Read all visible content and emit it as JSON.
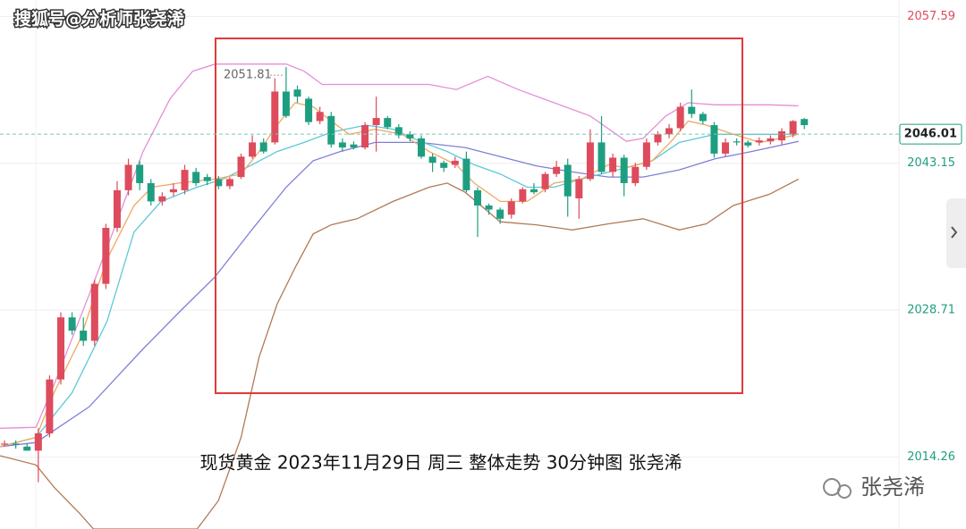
{
  "watermark": "搜狐号@分析师张尧浠",
  "logo": "张尧浠",
  "chart_data": {
    "type": "candlestick",
    "title": "现货黄金 2023年11月29日 周三 整体走势 30分钟图  张尧浠",
    "up_color": "#dd4b5c",
    "down_color": "#1e9e80",
    "open": [
      2015.6,
      2015.6,
      2015.3,
      2014.9,
      2016.6,
      2021.9,
      2028.0,
      2026.7,
      2025.7,
      2031.3,
      2036.8,
      2040.5,
      2043.0,
      2041.2,
      2039.4,
      2040.3,
      2040.5,
      2042.3,
      2041.8,
      2041.6,
      2040.9,
      2041.8,
      2043.8,
      2045.2,
      2045.2,
      2050.2,
      2050.4,
      2049.5,
      2047.3,
      2047.8,
      2045.2,
      2045.0,
      2044.7,
      2046.9,
      2047.6,
      2046.7,
      2046.0,
      2045.6,
      2043.8,
      2043.2,
      2043.0,
      2043.6,
      2040.5,
      2039.0,
      2038.6,
      2038.1,
      2039.4,
      2040.6,
      2040.6,
      2042.1,
      2043.0,
      2039.7,
      2041.6,
      2045.2,
      2042.3,
      2043.7,
      2041.2,
      2042.8,
      2045.2,
      2046.0,
      2046.6,
      2048.7,
      2048.0,
      2046.9,
      2044.1,
      2045.3,
      2045.2,
      2045.2,
      2045.3,
      2045.4,
      2046.0,
      2047.5
    ],
    "high": [
      2015.9,
      2015.9,
      2015.6,
      2017.1,
      2022.3,
      2028.5,
      2028.5,
      2028.0,
      2031.7,
      2037.2,
      2041.4,
      2043.6,
      2043.4,
      2041.6,
      2040.3,
      2041.2,
      2043.0,
      2042.7,
      2042.1,
      2041.9,
      2041.8,
      2044.1,
      2045.9,
      2045.6,
      2051.5,
      2052.6,
      2050.8,
      2049.7,
      2048.7,
      2048.2,
      2045.6,
      2045.3,
      2047.2,
      2049.7,
      2047.8,
      2047.0,
      2046.3,
      2045.9,
      2044.1,
      2043.4,
      2043.8,
      2044.3,
      2040.8,
      2039.2,
      2038.8,
      2039.7,
      2040.8,
      2041.2,
      2042.3,
      2043.4,
      2043.6,
      2041.9,
      2046.5,
      2047.8,
      2044.1,
      2044.0,
      2043.2,
      2045.6,
      2046.3,
      2047.0,
      2049.1,
      2050.4,
      2048.2,
      2047.2,
      2045.6,
      2045.6,
      2045.4,
      2045.7,
      2045.9,
      2046.6,
      2047.4,
      2047.6
    ],
    "low": [
      2015.3,
      2015.1,
      2014.9,
      2011.8,
      2016.2,
      2021.4,
      2026.3,
      2025.2,
      2025.2,
      2030.8,
      2036.4,
      2040.0,
      2040.5,
      2039.0,
      2039.0,
      2039.9,
      2040.1,
      2040.9,
      2041.0,
      2040.6,
      2040.6,
      2041.6,
      2043.6,
      2044.1,
      2045.0,
      2047.6,
      2049.1,
      2046.9,
      2047.0,
      2044.7,
      2044.3,
      2044.5,
      2044.5,
      2044.3,
      2046.5,
      2045.6,
      2045.3,
      2043.6,
      2042.3,
      2042.3,
      2042.7,
      2040.3,
      2035.9,
      2038.1,
      2037.2,
      2037.7,
      2039.2,
      2040.1,
      2040.3,
      2041.8,
      2037.9,
      2037.7,
      2041.4,
      2042.1,
      2041.8,
      2039.9,
      2040.9,
      2042.5,
      2044.9,
      2045.6,
      2046.3,
      2047.6,
      2047.0,
      2043.7,
      2043.8,
      2044.9,
      2044.7,
      2044.9,
      2045.0,
      2045.0,
      2045.7,
      2046.5
    ],
    "close": [
      2015.6,
      2015.5,
      2014.9,
      2016.6,
      2021.9,
      2028.0,
      2026.7,
      2025.7,
      2031.3,
      2036.8,
      2040.5,
      2043.0,
      2041.2,
      2039.4,
      2039.9,
      2040.6,
      2042.5,
      2041.2,
      2041.4,
      2040.9,
      2041.6,
      2043.8,
      2045.2,
      2044.3,
      2050.2,
      2047.8,
      2049.7,
      2047.2,
      2048.2,
      2045.0,
      2044.7,
      2044.7,
      2046.9,
      2047.6,
      2046.7,
      2045.9,
      2045.6,
      2043.8,
      2043.2,
      2042.7,
      2043.4,
      2040.5,
      2039.0,
      2038.6,
      2037.7,
      2039.4,
      2040.6,
      2040.3,
      2042.1,
      2042.8,
      2039.9,
      2041.6,
      2045.2,
      2042.3,
      2043.7,
      2041.2,
      2042.8,
      2045.2,
      2046.0,
      2046.6,
      2048.7,
      2048.0,
      2047.3,
      2044.1,
      2045.2,
      2045.2,
      2044.9,
      2045.4,
      2045.6,
      2046.3,
      2047.3,
      2046.9
    ],
    "overlays": [
      {
        "color": "#e38fd6",
        "x": [
          -0.4,
          2.8,
          4.4,
          7.5,
          9.9,
          12.3,
          14.7,
          16.7,
          18.7,
          25,
          26.6,
          28.2,
          34.5,
          37.7,
          40.1,
          42.9,
          45.6,
          48.8,
          52,
          55.2,
          56.7,
          58.7,
          60.7,
          63.1,
          67.9,
          70.5
        ],
        "values": [
          2017.1,
          2017.2,
          2021.4,
          2030.2,
          2037.2,
          2044.3,
          2049.5,
          2052.2,
          2052.9,
          2052.9,
          2052.2,
          2050.9,
          2050.9,
          2050.9,
          2050.4,
          2051.7,
          2050.4,
          2049.1,
          2047.8,
          2045.3,
          2045.6,
          2047.8,
          2049.1,
          2048.9,
          2048.9,
          2048.8
        ]
      },
      {
        "color": "#b07a55",
        "x": [
          -0.4,
          2.8,
          4.4,
          6.7,
          7.9,
          17.1,
          19,
          21,
          22.6,
          24.2,
          25.8,
          27.4,
          29,
          31.3,
          34.5,
          37.7,
          39.3,
          40.9,
          44,
          47.2,
          50.4,
          53.6,
          56.7,
          59.9,
          62.3,
          64.7,
          67.9,
          70.5
        ],
        "values": [
          2014.4,
          2013.5,
          2011.3,
          2008.7,
          2007.2,
          2007.2,
          2010.0,
          2016.2,
          2024.1,
          2029.3,
          2032.9,
          2036.2,
          2037.1,
          2037.7,
          2039.4,
          2040.8,
          2041.2,
          2040.3,
          2037.4,
          2037.1,
          2036.6,
          2037.2,
          2037.7,
          2036.6,
          2037.2,
          2039.0,
          2040.1,
          2041.6
        ]
      },
      {
        "color": "#7f7fd8",
        "x": [
          -0.4,
          2.8,
          7.5,
          12.3,
          15.5,
          18.7,
          21.8,
          25,
          27.4,
          29.8,
          32.9,
          36.9,
          40.9,
          44,
          47.2,
          50.4,
          53.6,
          56.7,
          59.9,
          63.1,
          66.3,
          70.5
        ],
        "values": [
          2015.3,
          2015.7,
          2019.2,
          2024.9,
          2028.5,
          2032.0,
          2036.4,
          2040.8,
          2043.4,
          2044.3,
          2045.2,
          2045.2,
          2044.7,
          2043.8,
          2042.9,
          2042.3,
          2041.8,
          2041.8,
          2042.5,
          2043.6,
          2044.3,
          2045.3
        ]
      },
      {
        "color": "#5cc9d6",
        "x": [
          -0.4,
          2.8,
          6,
          9.1,
          11.5,
          13.9,
          17.1,
          19.4,
          21.8,
          24.2,
          26.6,
          29,
          32.1,
          34.5,
          36.9,
          39.3,
          41.7,
          44,
          46.4,
          48.8,
          51.2,
          54.4,
          57.5,
          59.9,
          63.1,
          66.3,
          70.5
        ],
        "values": [
          2015.3,
          2016.2,
          2020.6,
          2027.6,
          2036.4,
          2039.4,
          2040.8,
          2041.6,
          2042.9,
          2044.3,
          2045.2,
          2046.2,
          2046.9,
          2046.5,
          2045.3,
          2044.3,
          2043.0,
          2042.1,
          2040.8,
          2040.8,
          2041.6,
          2042.5,
          2043.4,
          2045.2,
          2046.0,
          2046.0,
          2046.0
        ]
      },
      {
        "color": "#f0a860",
        "x": [
          -0.4,
          2.8,
          4.4,
          6.7,
          9.1,
          11.5,
          13.1,
          15.5,
          18.7,
          21,
          22.6,
          24.2,
          25.8,
          27.4,
          29,
          30.6,
          32.9,
          35.3,
          37.7,
          40.1,
          41.7,
          44,
          46.4,
          48.8,
          51.2,
          53.6,
          55.2,
          57.5,
          59.1,
          60.7,
          62.3,
          64.7,
          67.1,
          70.5
        ],
        "values": [
          2015.3,
          2016.2,
          2020.6,
          2025.8,
          2033.7,
          2039.0,
          2040.8,
          2041.2,
          2041.6,
          2042.1,
          2044.3,
          2046.9,
          2049.1,
          2048.7,
          2047.3,
          2046.0,
          2046.5,
          2046.0,
          2044.3,
          2043.0,
          2041.2,
          2039.4,
          2039.4,
          2041.2,
          2041.6,
          2043.0,
          2042.7,
          2043.4,
          2045.2,
          2047.3,
          2046.9,
          2046.0,
          2045.2,
          2046.0
        ]
      }
    ],
    "max_marker": 2051.81,
    "last_price": 2046.01,
    "xlim": [
      -0.4,
      79.4
    ],
    "ylim": [
      2007.2,
      2059.2
    ],
    "yticks": [
      2057.59,
      2043.15,
      2028.71,
      2014.26
    ],
    "grid": true
  }
}
